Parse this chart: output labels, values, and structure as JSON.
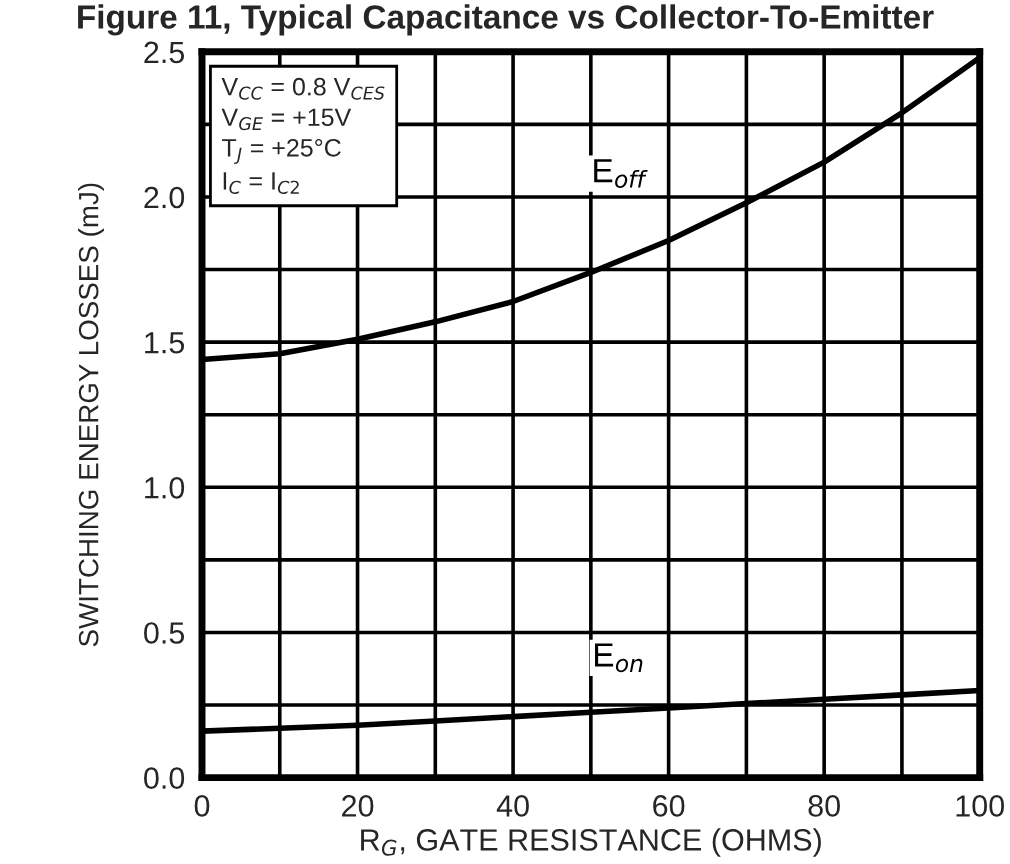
{
  "chart_data": {
    "type": "line",
    "title": "Figure 11, Typical Capacitance vs Collector-To-Emitter",
    "xlabel": "R$_{G}$, GATE RESISTANCE (OHMS)",
    "ylabel": "SWITCHING ENERGY LOSSES (mJ)",
    "x": [
      0,
      10,
      20,
      30,
      40,
      50,
      60,
      70,
      80,
      90,
      100
    ],
    "series": [
      {
        "name": "E$_{off}$",
        "color": "#000000",
        "values": [
          1.44,
          1.46,
          1.51,
          1.57,
          1.64,
          1.74,
          1.85,
          1.98,
          2.12,
          2.29,
          2.48
        ]
      },
      {
        "name": "E$_{on}$",
        "color": "#000000",
        "values": [
          0.16,
          0.17,
          0.18,
          0.195,
          0.21,
          0.225,
          0.24,
          0.255,
          0.27,
          0.285,
          0.3
        ]
      }
    ],
    "xlim": [
      0,
      100
    ],
    "ylim": [
      0,
      2.5
    ],
    "xticks": [
      0,
      {
        "value": 10,
        "label": null
      },
      20,
      {
        "value": 30,
        "label": null
      },
      40,
      {
        "value": 50,
        "label": null
      },
      60,
      {
        "value": 70,
        "label": null
      },
      80,
      {
        "value": 90,
        "label": null
      },
      100
    ],
    "yticks": [
      {
        "value": 0,
        "label": "0.0"
      },
      {
        "value": 0.25,
        "label": null
      },
      0.5,
      {
        "value": 0.75,
        "label": null
      },
      {
        "value": 1.0,
        "label": "1.0"
      },
      {
        "value": 1.25,
        "label": null
      },
      1.5,
      {
        "value": 1.75,
        "label": null
      },
      {
        "value": 2.0,
        "label": "2.0"
      },
      {
        "value": 2.25,
        "label": null
      },
      2.5
    ],
    "grid": true,
    "legend": false,
    "marker": "none",
    "line_style": "solid",
    "annotations": [
      "V$_{CC}$ = 0.8 V$_{CES}$\nV$_{GE}$ = +15V\nT$_{J}$ = +25°C\nI$_{C}$ = I$_{C2}$"
    ]
  }
}
